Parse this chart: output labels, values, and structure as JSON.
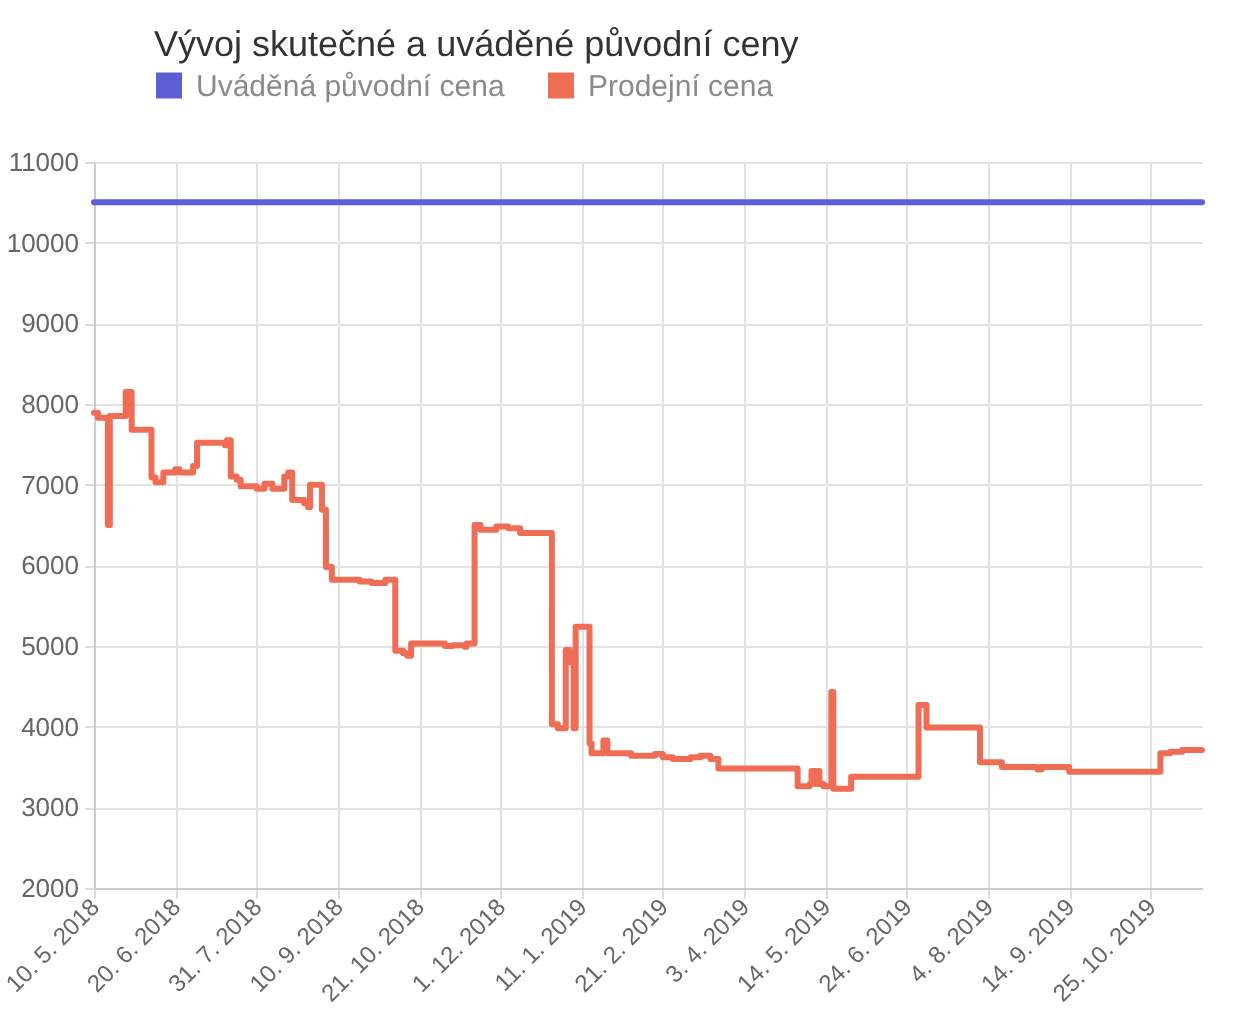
{
  "chart_data": {
    "type": "line",
    "title": "Vývoj skutečné a uváděné původní ceny",
    "legend": "top left",
    "grid": true,
    "xlim": [
      "2018-05-10",
      "2019-11-20"
    ],
    "xticks": [
      {
        "value": "2018-05-10",
        "label": "10. 5. 2018"
      },
      {
        "value": "2018-06-20",
        "label": "20. 6. 2018"
      },
      {
        "value": "2018-07-31",
        "label": "31. 7. 2018"
      },
      {
        "value": "2018-09-10",
        "label": "10. 9. 2018"
      },
      {
        "value": "2018-10-21",
        "label": "21. 10. 2018"
      },
      {
        "value": "2018-12-01",
        "label": "1. 12. 2018"
      },
      {
        "value": "2019-01-11",
        "label": "11. 1. 2019"
      },
      {
        "value": "2019-02-21",
        "label": "21. 2. 2019"
      },
      {
        "value": "2019-04-03",
        "label": "3. 4. 2019"
      },
      {
        "value": "2019-05-14",
        "label": "14. 5. 2019"
      },
      {
        "value": "2019-06-24",
        "label": "24. 6. 2019"
      },
      {
        "value": "2019-08-04",
        "label": "4. 8. 2019"
      },
      {
        "value": "2019-09-14",
        "label": "14. 9. 2019"
      },
      {
        "value": "2019-10-25",
        "label": "25. 10. 2019"
      }
    ],
    "ylim": [
      2000,
      11000
    ],
    "yticks": [
      2000,
      3000,
      4000,
      5000,
      6000,
      7000,
      8000,
      9000,
      10000,
      11000
    ],
    "series": [
      {
        "name": "Uváděná původní cena",
        "color": "#5b5fd3",
        "type": "line",
        "x": [
          "2018-05-10",
          "2019-11-20"
        ],
        "values": [
          10500,
          10500
        ]
      },
      {
        "name": "Prodejní cena",
        "color": "#ef6c55",
        "type": "step",
        "x": [
          "2018-05-10",
          "2018-05-12",
          "2018-05-16",
          "2018-05-17",
          "2018-05-18",
          "2018-05-26",
          "2018-05-29",
          "2018-06-08",
          "2018-06-10",
          "2018-06-14",
          "2018-06-20",
          "2018-06-22",
          "2018-06-29",
          "2018-07-01",
          "2018-07-15",
          "2018-07-16",
          "2018-07-18",
          "2018-07-21",
          "2018-07-23",
          "2018-07-31",
          "2018-08-04",
          "2018-08-08",
          "2018-08-14",
          "2018-08-16",
          "2018-08-18",
          "2018-08-24",
          "2018-08-26",
          "2018-08-27",
          "2018-09-02",
          "2018-09-04",
          "2018-09-07",
          "2018-09-21",
          "2018-09-27",
          "2018-10-04",
          "2018-10-09",
          "2018-10-13",
          "2018-10-15",
          "2018-10-17",
          "2018-11-03",
          "2018-11-07",
          "2018-11-13",
          "2018-11-14",
          "2018-11-18",
          "2018-11-21",
          "2018-11-29",
          "2018-12-05",
          "2018-12-11",
          "2018-12-27",
          "2018-12-30",
          "2019-01-03",
          "2019-01-05",
          "2019-01-07",
          "2019-01-08",
          "2019-01-15",
          "2019-01-16",
          "2019-01-22",
          "2019-01-24",
          "2019-02-05",
          "2019-02-17",
          "2019-02-21",
          "2019-02-26",
          "2019-03-07",
          "2019-03-12",
          "2019-03-17",
          "2019-03-21",
          "2019-04-30",
          "2019-05-06",
          "2019-05-07",
          "2019-05-09",
          "2019-05-10",
          "2019-05-11",
          "2019-05-13",
          "2019-05-17",
          "2019-05-18",
          "2019-05-27",
          "2019-06-30",
          "2019-07-04",
          "2019-07-31",
          "2019-08-11",
          "2019-08-29",
          "2019-08-31",
          "2019-09-14",
          "2019-10-30",
          "2019-11-04",
          "2019-11-10",
          "2019-11-20"
        ],
        "values": [
          7890,
          7830,
          7820,
          6500,
          7850,
          8150,
          7680,
          7090,
          7030,
          7150,
          7190,
          7150,
          7230,
          7520,
          7490,
          7550,
          7100,
          7060,
          6980,
          6950,
          7010,
          6950,
          7100,
          7150,
          6810,
          6770,
          6720,
          7000,
          6690,
          5980,
          5820,
          5800,
          5780,
          5820,
          4940,
          4910,
          4880,
          5030,
          5000,
          5010,
          4990,
          5030,
          6500,
          6440,
          6480,
          6460,
          6400,
          4030,
          3980,
          4950,
          4800,
          3980,
          5240,
          3790,
          3670,
          3830,
          3670,
          3640,
          3660,
          3620,
          3600,
          3620,
          3640,
          3600,
          3480,
          3260,
          3290,
          3450,
          3290,
          3450,
          3290,
          3260,
          4430,
          3230,
          3380,
          4270,
          3990,
          3560,
          3500,
          3470,
          3500,
          3440,
          3670,
          3690,
          3710,
          3710
        ]
      }
    ]
  }
}
